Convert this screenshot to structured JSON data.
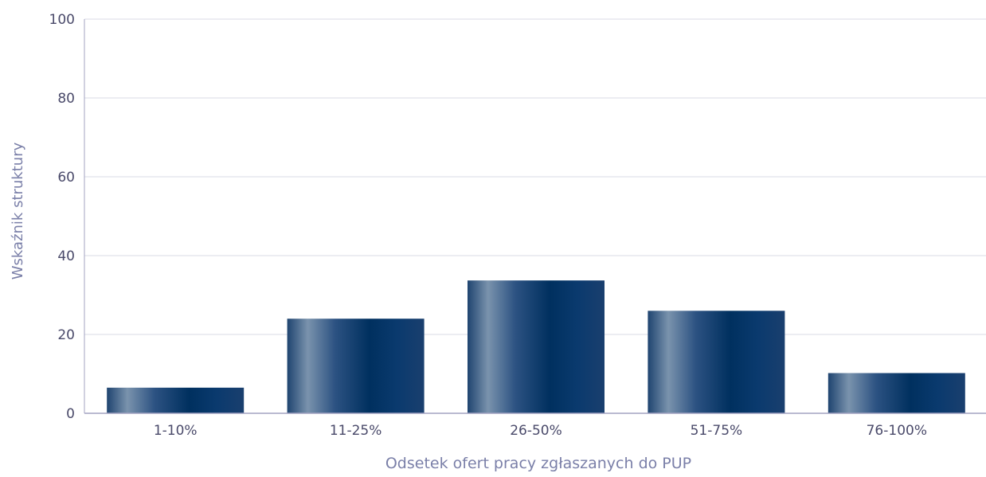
{
  "chart_data": {
    "type": "bar",
    "title": "",
    "xlabel": "Odsetek ofert pracy zgłaszanych do PUP",
    "ylabel": "Wskaźnik struktury",
    "categories": [
      "1-10%",
      "11-25%",
      "26-50%",
      "51-75%",
      "76-100%"
    ],
    "values": [
      6.5,
      24,
      33.7,
      26,
      10.2
    ],
    "ylim": [
      0,
      100
    ],
    "yticks": [
      0,
      20,
      40,
      60,
      80,
      100
    ],
    "grid": true,
    "legend": "none",
    "colors": {
      "bar_dark": "#00305f",
      "bar_light": "#7a93ad",
      "axis_text": "#4a4a6a",
      "axis_title": "#7a7fa8",
      "grid": "#d8dbe6",
      "axis_line": "#a3a3c2"
    }
  }
}
